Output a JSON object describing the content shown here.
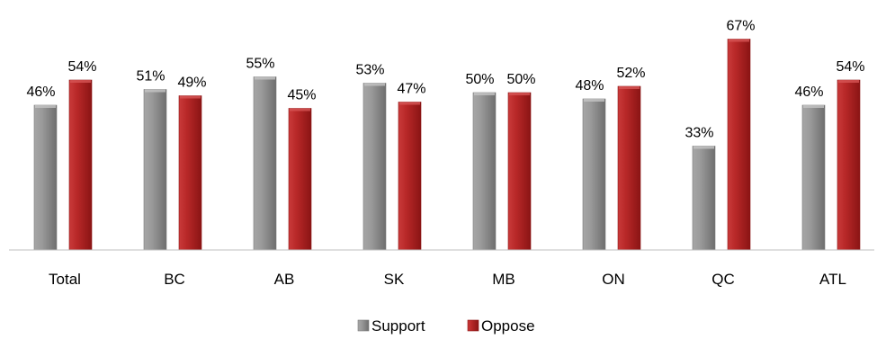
{
  "chart_data": {
    "type": "bar",
    "categories": [
      "Total",
      "BC",
      "AB",
      "SK",
      "MB",
      "ON",
      "QC",
      "ATL"
    ],
    "series": [
      {
        "name": "Support",
        "values": [
          46,
          51,
          55,
          53,
          50,
          48,
          33,
          46
        ],
        "color": "#8c8c8c"
      },
      {
        "name": "Oppose",
        "values": [
          54,
          49,
          45,
          47,
          50,
          52,
          67,
          54
        ],
        "color": "#b22222"
      }
    ],
    "data_labels": [
      [
        "46%",
        "51%",
        "55%",
        "53%",
        "50%",
        "48%",
        "33%",
        "46%"
      ],
      [
        "54%",
        "49%",
        "45%",
        "47%",
        "50%",
        "52%",
        "67%",
        "54%"
      ]
    ],
    "title": "",
    "xlabel": "",
    "ylabel": "",
    "ylim": [
      0,
      70
    ],
    "grid": false,
    "legend_position": "bottom"
  }
}
